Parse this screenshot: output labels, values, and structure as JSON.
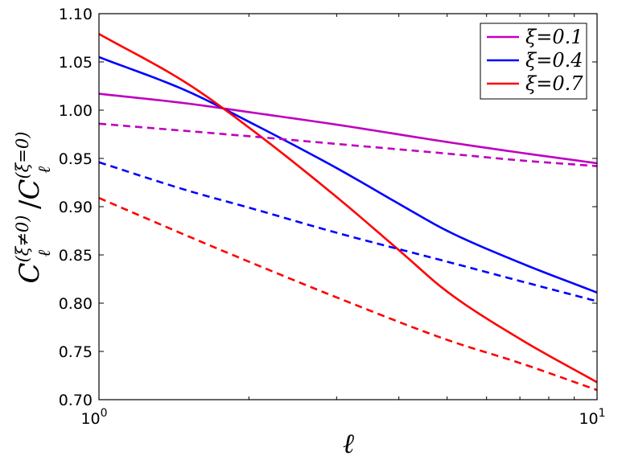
{
  "chart_data": {
    "type": "line",
    "title": "",
    "xlabel": "ℓ",
    "ylabel": {
      "base": "C",
      "numerator_superscript": "(ξ≠0)",
      "denominator_superscript": "(ξ=0)",
      "subscript": "ℓ"
    },
    "x_scale": "log",
    "xlim": [
      1,
      10
    ],
    "ylim": [
      0.7,
      1.1
    ],
    "x_ticks": [
      {
        "value": 1,
        "base": "10",
        "exp": "0"
      },
      {
        "value": 10,
        "base": "10",
        "exp": "1"
      }
    ],
    "y_ticks": [
      {
        "value": 0.7,
        "label": "0.70"
      },
      {
        "value": 0.75,
        "label": "0.75"
      },
      {
        "value": 0.8,
        "label": "0.80"
      },
      {
        "value": 0.85,
        "label": "0.85"
      },
      {
        "value": 0.9,
        "label": "0.90"
      },
      {
        "value": 0.95,
        "label": "0.95"
      },
      {
        "value": 1.0,
        "label": "1.00"
      },
      {
        "value": 1.05,
        "label": "1.05"
      },
      {
        "value": 1.1,
        "label": "1.10"
      }
    ],
    "grid": false,
    "legend_position": "top-right",
    "series": [
      {
        "name": "ξ=0.1",
        "color": "#bf00bf",
        "style": "solid",
        "x": [
          1,
          1.5,
          2,
          3,
          5,
          7,
          10
        ],
        "y": [
          1.017,
          1.007,
          0.998,
          0.985,
          0.967,
          0.956,
          0.945
        ]
      },
      {
        "name": "ξ=0.4",
        "color": "#0000ff",
        "style": "solid",
        "x": [
          1,
          1.5,
          2,
          3,
          4,
          5,
          7,
          10
        ],
        "y": [
          1.055,
          1.02,
          0.988,
          0.94,
          0.903,
          0.875,
          0.842,
          0.811
        ]
      },
      {
        "name": "ξ=0.7",
        "color": "#ff0000",
        "style": "solid",
        "x": [
          1,
          1.5,
          2,
          3,
          4,
          5,
          7,
          10
        ],
        "y": [
          1.079,
          1.028,
          0.982,
          0.91,
          0.855,
          0.812,
          0.763,
          0.718
        ]
      },
      {
        "color": "#bf00bf",
        "style": "dashed",
        "x": [
          1,
          2,
          3,
          5,
          7,
          10
        ],
        "y": [
          0.986,
          0.973,
          0.965,
          0.955,
          0.948,
          0.942
        ]
      },
      {
        "color": "#0000ff",
        "style": "dashed",
        "x": [
          1,
          1.5,
          2,
          3,
          5,
          7,
          10
        ],
        "y": [
          0.946,
          0.917,
          0.899,
          0.873,
          0.843,
          0.823,
          0.802
        ]
      },
      {
        "color": "#ff0000",
        "style": "dashed",
        "x": [
          1,
          1.5,
          2,
          3,
          5,
          7,
          10
        ],
        "y": [
          0.909,
          0.87,
          0.843,
          0.806,
          0.762,
          0.738,
          0.71
        ]
      }
    ]
  }
}
